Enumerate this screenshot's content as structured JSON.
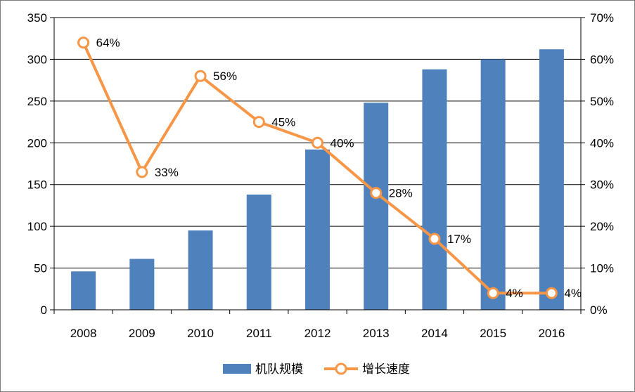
{
  "chart_data": {
    "type": "bar",
    "categories": [
      "2008",
      "2009",
      "2010",
      "2011",
      "2012",
      "2013",
      "2014",
      "2015",
      "2016"
    ],
    "series": [
      {
        "name": "机队规模",
        "type": "bar",
        "axis": "left",
        "color": "#4f81bd",
        "values": [
          46,
          61,
          95,
          138,
          192,
          248,
          288,
          300,
          312
        ]
      },
      {
        "name": "增长速度",
        "type": "line",
        "axis": "right",
        "color": "#f79646",
        "values": [
          0.64,
          0.33,
          0.56,
          0.45,
          0.4,
          0.28,
          0.17,
          0.04,
          0.04
        ],
        "labels": [
          "64%",
          "33%",
          "56%",
          "45%",
          "40%",
          "28%",
          "17%",
          "4%",
          "4%"
        ]
      }
    ],
    "y_left": {
      "min": 0,
      "max": 350,
      "ticks": [
        "0",
        "50",
        "100",
        "150",
        "200",
        "250",
        "300",
        "350"
      ]
    },
    "y_right": {
      "min": 0,
      "max": 0.7,
      "ticks": [
        "0%",
        "10%",
        "20%",
        "30%",
        "40%",
        "50%",
        "60%",
        "70%"
      ]
    },
    "grid": true,
    "legend": "bottom"
  }
}
